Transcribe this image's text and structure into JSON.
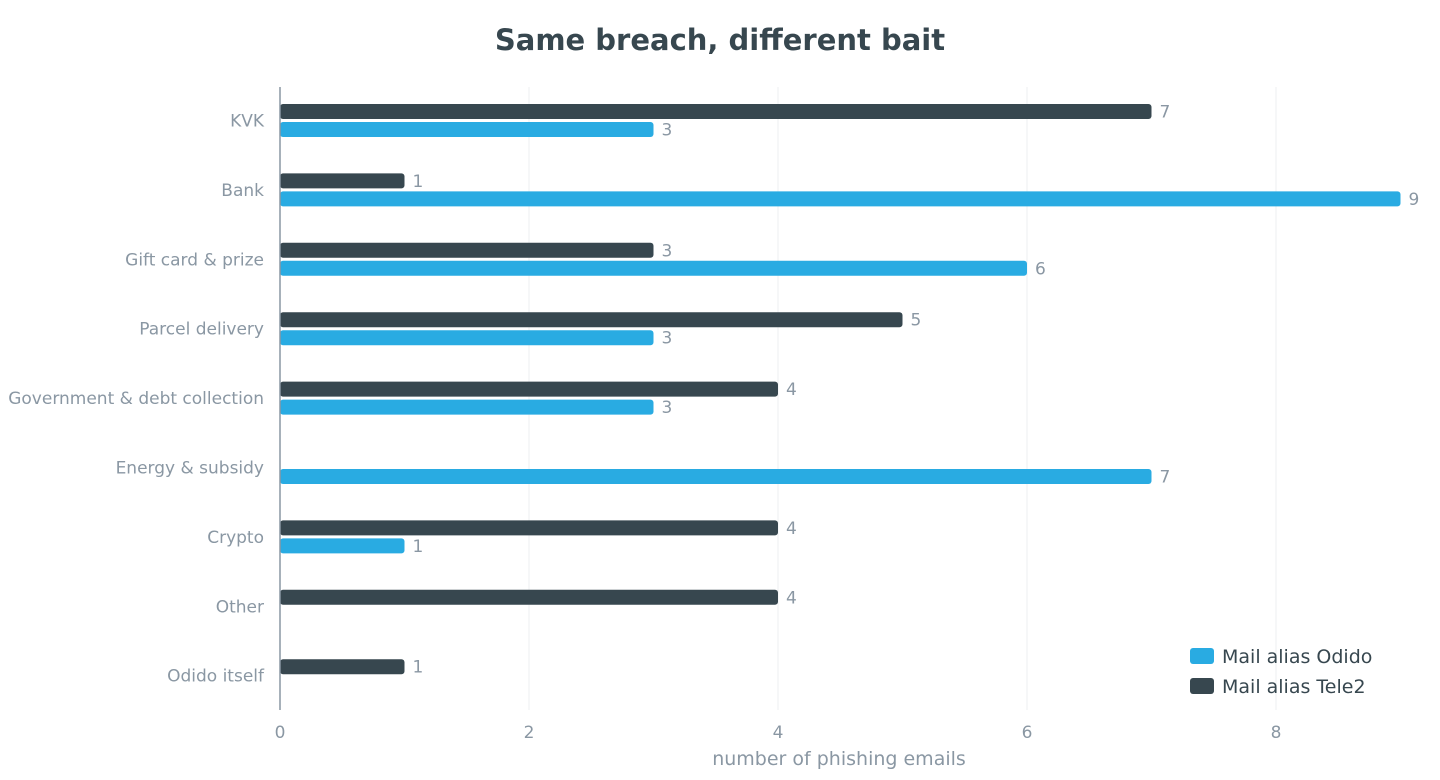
{
  "chart_data": {
    "type": "bar",
    "orientation": "horizontal",
    "title": "Same breach, different bait",
    "xlabel": "number of phishing emails",
    "ylabel": "",
    "xlim": [
      0,
      9.2
    ],
    "xticks": [
      0,
      2,
      4,
      6,
      8
    ],
    "grid": true,
    "legend_position": "bottom-right",
    "categories": [
      "KVK",
      "Bank",
      "Gift card & prize",
      "Parcel delivery",
      "Government & debt collection",
      "Energy & subsidy",
      "Crypto",
      "Other",
      "Odido itself"
    ],
    "series": [
      {
        "name": "Mail alias Tele2",
        "color": "#37474f",
        "values": [
          7,
          1,
          3,
          5,
          4,
          0,
          4,
          4,
          1
        ]
      },
      {
        "name": "Mail alias Odido",
        "color": "#29abe2",
        "values": [
          3,
          9,
          6,
          3,
          3,
          7,
          1,
          0,
          0
        ]
      }
    ],
    "legend_order": [
      "Mail alias Odido",
      "Mail alias Tele2"
    ]
  }
}
